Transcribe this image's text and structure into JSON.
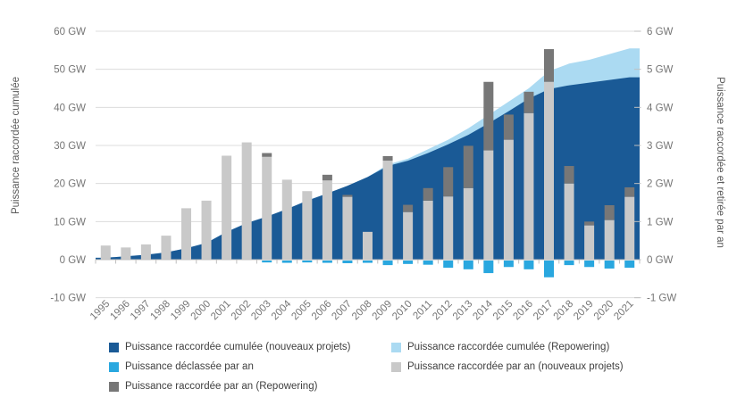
{
  "chart_data": {
    "type": "area+bar combo",
    "title": "",
    "unit": "GW",
    "x": [
      1995,
      1996,
      1997,
      1998,
      1999,
      2000,
      2001,
      2002,
      2003,
      2004,
      2005,
      2006,
      2007,
      2008,
      2009,
      2010,
      2011,
      2012,
      2013,
      2014,
      2015,
      2016,
      2017,
      2018,
      2019,
      2020,
      2021
    ],
    "left_axis": {
      "title": "Puissance raccordée cumulée",
      "ticks": [
        "60 GW",
        "50 GW",
        "40 GW",
        "30 GW",
        "20 GW",
        "10 GW",
        "0 GW",
        "-10 GW"
      ],
      "tick_values": [
        60,
        50,
        40,
        30,
        20,
        10,
        0,
        -10
      ],
      "range": [
        -10,
        60
      ],
      "grid": true
    },
    "right_axis": {
      "title": "Puissance raccordée et retirée par an",
      "ticks": [
        "6 GW",
        "5 GW",
        "4 GW",
        "3 GW",
        "2 GW",
        "1 GW",
        "0 GW",
        "-1 GW"
      ],
      "tick_values": [
        6,
        5,
        4,
        3,
        2,
        1,
        0,
        -1
      ],
      "range": [
        -1,
        6
      ]
    },
    "series": [
      {
        "name": "Puissance raccordée cumulée (nouveaux projets)",
        "type": "area",
        "axis": "left",
        "color": "#1A5A96",
        "values": [
          0.5,
          0.9,
          1.3,
          1.9,
          3.0,
          4.4,
          7.3,
          9.6,
          11.3,
          13.3,
          15.5,
          17.4,
          19.4,
          21.7,
          24.6,
          26.0,
          28.0,
          30.3,
          32.8,
          35.8,
          39.0,
          42.3,
          44.8,
          45.8,
          46.5,
          47.2,
          47.9
        ]
      },
      {
        "name": "Puissance raccordée cumulée (Repowering)",
        "type": "area-stacked",
        "axis": "left",
        "color": "#ABDAF2",
        "values": [
          0,
          0,
          0,
          0,
          0,
          0,
          0,
          0,
          0,
          0,
          0,
          0,
          0,
          0,
          0.4,
          0.5,
          1.0,
          1.2,
          1.7,
          2.2,
          2.5,
          2.7,
          4.7,
          5.7,
          6.0,
          6.8,
          7.6
        ]
      },
      {
        "name": "Puissance raccordée par an (nouveaux projets)",
        "type": "bar",
        "axis": "right",
        "color": "#C9C9C9",
        "values": [
          0.37,
          0.32,
          0.4,
          0.63,
          1.35,
          1.55,
          2.73,
          3.08,
          2.7,
          2.1,
          1.8,
          2.08,
          1.65,
          0.73,
          2.6,
          1.25,
          1.55,
          1.66,
          1.88,
          2.87,
          3.15,
          3.85,
          4.67,
          2.0,
          0.9,
          1.04,
          1.65
        ]
      },
      {
        "name": "Puissance raccordée par an (Repowering)",
        "type": "bar-stacked",
        "axis": "right",
        "color": "#777777",
        "values": [
          0,
          0,
          0,
          0,
          0,
          0,
          0,
          0,
          0.1,
          0,
          0,
          0.15,
          0.05,
          0,
          0.12,
          0.19,
          0.33,
          0.77,
          1.11,
          1.8,
          0.66,
          0.56,
          0.86,
          0.46,
          0.1,
          0.39,
          0.25
        ]
      },
      {
        "name": "Puissance déclassée par an",
        "type": "bar",
        "axis": "right",
        "color": "#29A7DF",
        "values": [
          0,
          0,
          0,
          0,
          0,
          0,
          0,
          0,
          -0.05,
          -0.06,
          -0.05,
          -0.06,
          -0.07,
          -0.06,
          -0.12,
          -0.09,
          -0.11,
          -0.19,
          -0.23,
          -0.33,
          -0.17,
          -0.23,
          -0.44,
          -0.12,
          -0.17,
          -0.21,
          -0.19
        ]
      }
    ],
    "legend": {
      "position": "bottom",
      "items": [
        {
          "label": "Puissance raccordée cumulée (nouveaux projets)",
          "color": "#1A5A96"
        },
        {
          "label": "Puissance raccordée cumulée (Repowering)",
          "color": "#ABDAF2"
        },
        {
          "label": "Puissance déclassée par an",
          "color": "#29A7DF"
        },
        {
          "label": "Puissance raccordée par an (nouveaux projets)",
          "color": "#C9C9C9"
        },
        {
          "label": "Puissance raccordée par an (Repowering)",
          "color": "#777777"
        }
      ]
    }
  },
  "colors": {
    "background": "#FFFFFF",
    "gridline": "#DCDCDC",
    "axis_line": "#BFBFBF",
    "tick_text": "#757575",
    "axis_title_text": "#595959",
    "legend_text": "#404040"
  }
}
